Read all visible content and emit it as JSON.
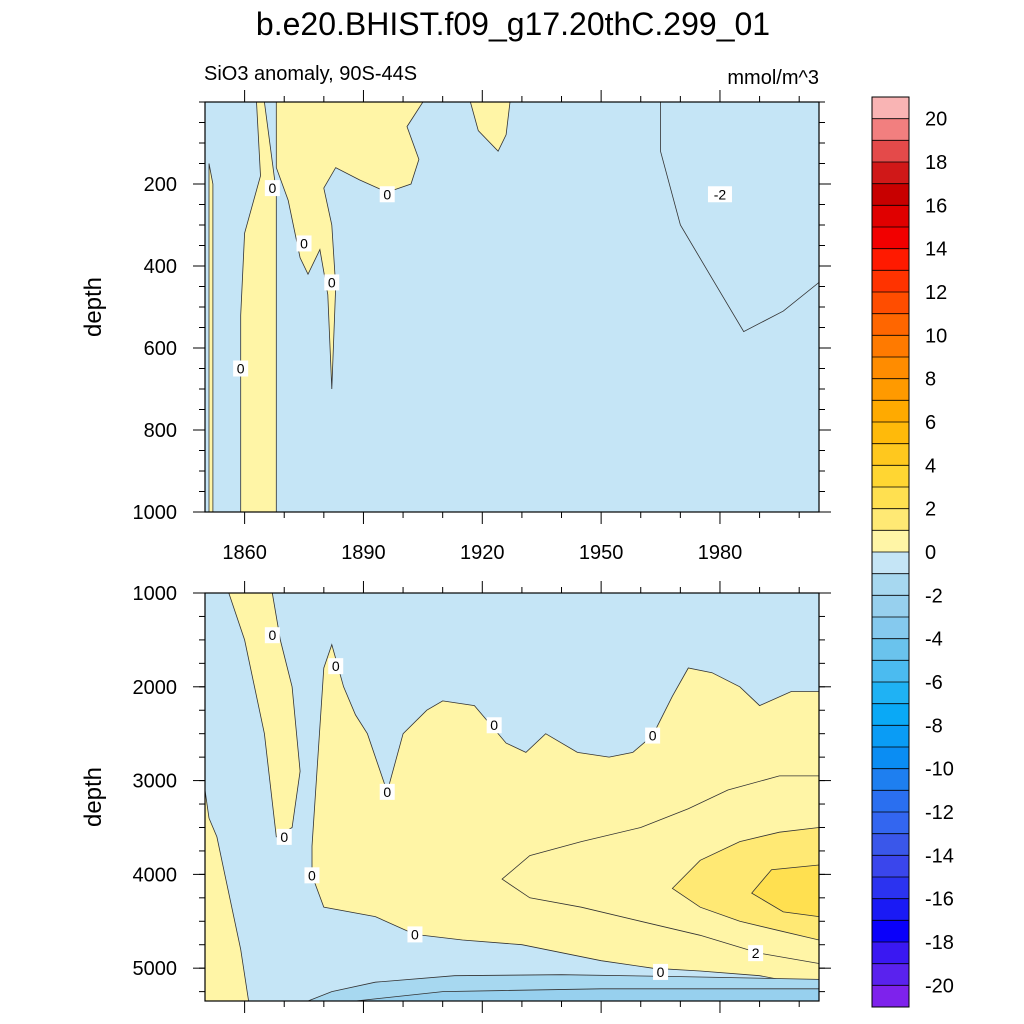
{
  "chart_data": [
    {
      "type": "heatmap",
      "title": "b.e20.BHIST.f09_g17.20thC.299_01",
      "left_subtitle": "SiO3 anomaly, 90S-44S",
      "right_subtitle": "mmol/m^3",
      "ylabel": "depth",
      "xlim": [
        1850,
        2005
      ],
      "ylim": [
        1000,
        0
      ],
      "x_ticks": [
        "1860",
        "1890",
        "1920",
        "1950",
        "1980"
      ],
      "y_ticks": [
        "200",
        "400",
        "600",
        "800",
        "1000"
      ],
      "contour_labels": [
        {
          "text": "0",
          "x": 1867,
          "y": 210
        },
        {
          "text": "0",
          "x": 1875,
          "y": 345
        },
        {
          "text": "0",
          "x": 1882,
          "y": 440
        },
        {
          "text": "0",
          "x": 1896,
          "y": 225
        },
        {
          "text": "0",
          "x": 1859,
          "y": 650
        },
        {
          "text": "-2",
          "x": 1980,
          "y": 225
        }
      ],
      "regions": [
        {
          "level": "0 to 2",
          "points": [
            [
              1851,
              1000
            ],
            [
              1851,
              150
            ],
            [
              1852,
              200
            ],
            [
              1852,
              1000
            ]
          ]
        },
        {
          "level": "0 to 2",
          "points": [
            [
              1859,
              1000
            ],
            [
              1859,
              520
            ],
            [
              1860,
              320
            ],
            [
              1864,
              180
            ],
            [
              1863,
              0
            ],
            [
              1865,
              0
            ],
            [
              1868,
              220
            ],
            [
              1868,
              1000
            ]
          ]
        },
        {
          "level": "0 to 2",
          "points": [
            [
              1868,
              0
            ],
            [
              1868,
              160
            ],
            [
              1871,
              240
            ],
            [
              1874,
              380
            ],
            [
              1876,
              420
            ],
            [
              1879,
              360
            ],
            [
              1881,
              470
            ],
            [
              1882,
              700
            ],
            [
              1883,
              450
            ],
            [
              1882,
              300
            ],
            [
              1880,
              210
            ],
            [
              1883,
              160
            ],
            [
              1889,
              190
            ],
            [
              1896,
              220
            ],
            [
              1902,
              200
            ],
            [
              1904,
              140
            ],
            [
              1901,
              60
            ],
            [
              1905,
              0
            ]
          ]
        },
        {
          "level": "0 to 2",
          "points": [
            [
              1917,
              0
            ],
            [
              1919,
              70
            ],
            [
              1924,
              120
            ],
            [
              1926,
              80
            ],
            [
              1927,
              0
            ]
          ]
        },
        {
          "level": "-2 to 0",
          "points": [
            [
              1965,
              0
            ],
            [
              1965,
              120
            ],
            [
              1970,
              300
            ],
            [
              1978,
              430
            ],
            [
              1986,
              560
            ],
            [
              1996,
              510
            ],
            [
              2005,
              440
            ],
            [
              2005,
              0
            ]
          ]
        }
      ]
    },
    {
      "type": "heatmap",
      "ylabel": "depth",
      "xlim": [
        1850,
        2005
      ],
      "ylim": [
        5350,
        1000
      ],
      "y_ticks": [
        "1000",
        "2000",
        "3000",
        "4000",
        "5000"
      ],
      "contour_labels": [
        {
          "text": "0",
          "x": 1867,
          "y": 1450
        },
        {
          "text": "0",
          "x": 1883,
          "y": 1780
        },
        {
          "text": "0",
          "x": 1923,
          "y": 2410
        },
        {
          "text": "0",
          "x": 1963,
          "y": 2520
        },
        {
          "text": "0",
          "x": 1896,
          "y": 3120
        },
        {
          "text": "0",
          "x": 1870,
          "y": 3600
        },
        {
          "text": "0",
          "x": 1877,
          "y": 4010
        },
        {
          "text": "0",
          "x": 1903,
          "y": 4640
        },
        {
          "text": "0",
          "x": 1965,
          "y": 5040
        },
        {
          "text": "2",
          "x": 1989,
          "y": 4840
        }
      ],
      "regions": [
        {
          "level": "0 to 2",
          "points": [
            [
              1851,
              3400
            ],
            [
              1853,
              3600
            ],
            [
              1855,
              4000
            ],
            [
              1859,
              4800
            ],
            [
              1861,
              5350
            ],
            [
              1850,
              5350
            ],
            [
              1850,
              3100
            ]
          ]
        },
        {
          "level": "0 to 2",
          "points": [
            [
              1856,
              1000
            ],
            [
              1860,
              1500
            ],
            [
              1865,
              2500
            ],
            [
              1868,
              3600
            ],
            [
              1872,
              3500
            ],
            [
              1874,
              2900
            ],
            [
              1872,
              2000
            ],
            [
              1869,
              1500
            ],
            [
              1867,
              1000
            ]
          ]
        },
        {
          "level": "0 to 2",
          "points": [
            [
              1877,
              3700
            ],
            [
              1880,
              1800
            ],
            [
              1882,
              1550
            ],
            [
              1885,
              2000
            ],
            [
              1888,
              2300
            ],
            [
              1891,
              2500
            ],
            [
              1896,
              3120
            ],
            [
              1900,
              2500
            ],
            [
              1906,
              2250
            ],
            [
              1910,
              2150
            ],
            [
              1918,
              2200
            ],
            [
              1922,
              2400
            ],
            [
              1926,
              2600
            ],
            [
              1931,
              2700
            ],
            [
              1936,
              2500
            ],
            [
              1944,
              2700
            ],
            [
              1952,
              2750
            ],
            [
              1958,
              2700
            ],
            [
              1963,
              2520
            ],
            [
              1968,
              2100
            ],
            [
              1972,
              1800
            ],
            [
              1978,
              1850
            ],
            [
              1985,
              2000
            ],
            [
              1990,
              2200
            ],
            [
              1998,
              2050
            ],
            [
              2005,
              2050
            ],
            [
              2005,
              5200
            ],
            [
              1990,
              5080
            ],
            [
              1975,
              5030
            ],
            [
              1963,
              5000
            ],
            [
              1950,
              4920
            ],
            [
              1930,
              4750
            ],
            [
              1915,
              4700
            ],
            [
              1903,
              4640
            ],
            [
              1893,
              4450
            ],
            [
              1880,
              4350
            ],
            [
              1877,
              4010
            ]
          ]
        },
        {
          "level": "0 to 2",
          "points": [
            [
              1925,
              4050
            ],
            [
              1932,
              3800
            ],
            [
              1945,
              3650
            ],
            [
              1960,
              3500
            ],
            [
              1972,
              3300
            ],
            [
              1982,
              3100
            ],
            [
              1995,
              2950
            ],
            [
              2005,
              2950
            ],
            [
              2005,
              4950
            ],
            [
              1990,
              4840
            ],
            [
              1975,
              4650
            ],
            [
              1960,
              4500
            ],
            [
              1945,
              4350
            ],
            [
              1932,
              4250
            ]
          ]
        },
        {
          "level": "2 to 4",
          "points": [
            [
              1968,
              4150
            ],
            [
              1975,
              3850
            ],
            [
              1985,
              3650
            ],
            [
              1995,
              3550
            ],
            [
              2005,
              3500
            ],
            [
              2005,
              4700
            ],
            [
              1995,
              4600
            ],
            [
              1985,
              4500
            ],
            [
              1975,
              4350
            ]
          ]
        },
        {
          "level": "4 to 6",
          "points": [
            [
              1988,
              4200
            ],
            [
              1993,
              3950
            ],
            [
              2005,
              3900
            ],
            [
              2005,
              4450
            ],
            [
              1996,
              4400
            ]
          ]
        },
        {
          "level": "-4 to -2",
          "points": [
            [
              1876,
              5350
            ],
            [
              1882,
              5250
            ],
            [
              1893,
              5150
            ],
            [
              1913,
              5080
            ],
            [
              1940,
              5070
            ],
            [
              1970,
              5090
            ],
            [
              2005,
              5120
            ],
            [
              2005,
              5350
            ]
          ]
        },
        {
          "level": "-6 to -4",
          "points": [
            [
              1888,
              5350
            ],
            [
              1910,
              5250
            ],
            [
              1950,
              5220
            ],
            [
              2005,
              5220
            ],
            [
              2005,
              5350
            ]
          ]
        }
      ]
    },
    {
      "type": "colorbar",
      "labels": [
        "20",
        "18",
        "16",
        "14",
        "12",
        "10",
        "8",
        "6",
        "4",
        "2",
        "0",
        "-2",
        "-4",
        "-6",
        "-8",
        "-10",
        "-12",
        "-14",
        "-16",
        "-18",
        "-20"
      ],
      "colors": [
        "#f9b4b4",
        "#f27f7f",
        "#e44a4a",
        "#d01818",
        "#c80000",
        "#e00000",
        "#f20000",
        "#ff1a00",
        "#ff3300",
        "#ff4d00",
        "#ff6600",
        "#ff7a00",
        "#ff8c00",
        "#ff9a00",
        "#ffaa00",
        "#ffba0a",
        "#ffc81e",
        "#ffd632",
        "#ffe050",
        "#ffe974",
        "#fff5a6",
        "#c5e5f6",
        "#a7d8f0",
        "#97d0ee",
        "#85c9ee",
        "#6ac3ed",
        "#4bbbf0",
        "#1fb2f4",
        "#0aa9f6",
        "#0a9cf5",
        "#0a8df3",
        "#1e7ff0",
        "#2a6ff0",
        "#3366f0",
        "#3a57ea",
        "#3a46ec",
        "#2b33f0",
        "#1a1af5",
        "#0a00fa",
        "#3a18f2",
        "#5a22ee",
        "#7e22ec"
      ]
    }
  ],
  "legend_colors": {
    "0 to 2": "#fff5a6",
    "2 to 4": "#ffe974",
    "4 to 6": "#ffe050",
    "-2 to 0": "#c5e5f6",
    "-4 to -2": "#a7d8f0",
    "-6 to -4": "#97d0ee"
  }
}
